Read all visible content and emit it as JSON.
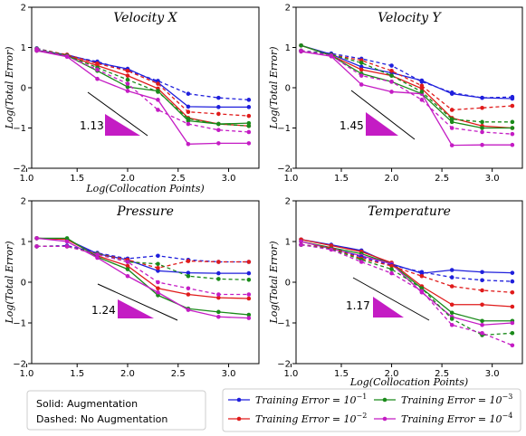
{
  "colors": {
    "blue": "#1f1fdc",
    "red": "#e01b1b",
    "green": "#1a8a1a",
    "magenta": "#c41cc4"
  },
  "note": {
    "line1": "Solid: Augmentation",
    "line2": "Dashed: No Augmentation"
  },
  "legend": [
    {
      "label": "Training Error = 10",
      "exp": "−1",
      "color_key": "blue"
    },
    {
      "label": "Training Error = 10",
      "exp": "−3",
      "color_key": "green"
    },
    {
      "label": "Training Error = 10",
      "exp": "−2",
      "color_key": "red"
    },
    {
      "label": "Training Error = 10",
      "exp": "−4",
      "color_key": "magenta"
    }
  ],
  "chart_data": [
    {
      "type": "line",
      "title": "Velocity X",
      "xlabel": "Log(Collocation Points)",
      "ylabel": "Log(Total Error)",
      "xlim": [
        1.05,
        3.3
      ],
      "ylim": [
        -2,
        2
      ],
      "xticks": [
        "1.0",
        "1.5",
        "2.0",
        "2.5",
        "3.0"
      ],
      "yticks": [
        "−2",
        "−1",
        "0",
        "1",
        "2"
      ],
      "slope_label": "1.13",
      "x": [
        1.1,
        1.4,
        1.7,
        2.0,
        2.3,
        2.6,
        2.9,
        3.2
      ],
      "series": [
        {
          "color_key": "blue",
          "style": "solid",
          "values": [
            0.93,
            0.82,
            0.62,
            0.47,
            0.13,
            -0.47,
            -0.48,
            -0.48
          ]
        },
        {
          "color_key": "red",
          "style": "solid",
          "values": [
            0.92,
            0.8,
            0.55,
            0.3,
            -0.02,
            -0.75,
            -0.9,
            -0.95
          ]
        },
        {
          "color_key": "green",
          "style": "solid",
          "values": [
            0.92,
            0.8,
            0.42,
            0.02,
            -0.08,
            -0.82,
            -0.9,
            -0.88
          ]
        },
        {
          "color_key": "magenta",
          "style": "solid",
          "values": [
            0.92,
            0.77,
            0.22,
            -0.08,
            -0.3,
            -1.4,
            -1.38,
            -1.38
          ]
        },
        {
          "color_key": "blue",
          "style": "dashed",
          "values": [
            0.98,
            0.8,
            0.65,
            0.43,
            0.17,
            -0.15,
            -0.25,
            -0.3
          ]
        },
        {
          "color_key": "red",
          "style": "dashed",
          "values": [
            0.97,
            0.82,
            0.6,
            0.42,
            0.1,
            -0.6,
            -0.65,
            -0.7
          ]
        },
        {
          "color_key": "green",
          "style": "dashed",
          "values": [
            0.97,
            0.8,
            0.5,
            0.2,
            -0.1,
            -0.77,
            -0.9,
            -0.95
          ]
        },
        {
          "color_key": "magenta",
          "style": "dashed",
          "values": [
            0.96,
            0.78,
            0.45,
            0.1,
            -0.55,
            -0.9,
            -1.05,
            -1.1
          ]
        }
      ]
    },
    {
      "type": "line",
      "title": "Velocity Y",
      "xlabel": "",
      "ylabel": "Log(Total Error)",
      "xlim": [
        1.05,
        3.3
      ],
      "ylim": [
        -2,
        2
      ],
      "xticks": [
        "1.0",
        "1.5",
        "2.0",
        "2.5",
        "3.0"
      ],
      "yticks": [
        "−2",
        "−1",
        "0",
        "1",
        "2"
      ],
      "slope_label": "1.45",
      "x": [
        1.1,
        1.4,
        1.7,
        2.0,
        2.3,
        2.6,
        2.9,
        3.2
      ],
      "series": [
        {
          "color_key": "blue",
          "style": "solid",
          "values": [
            1.05,
            0.83,
            0.52,
            0.37,
            0.18,
            -0.15,
            -0.25,
            -0.27
          ]
        },
        {
          "color_key": "red",
          "style": "solid",
          "values": [
            1.05,
            0.8,
            0.45,
            0.3,
            -0.02,
            -0.75,
            -0.95,
            -1.0
          ]
        },
        {
          "color_key": "green",
          "style": "solid",
          "values": [
            1.05,
            0.8,
            0.35,
            0.15,
            -0.15,
            -0.85,
            -1.0,
            -1.0
          ]
        },
        {
          "color_key": "magenta",
          "style": "solid",
          "values": [
            0.9,
            0.78,
            0.08,
            -0.1,
            -0.15,
            -1.43,
            -1.42,
            -1.42
          ]
        },
        {
          "color_key": "blue",
          "style": "dashed",
          "values": [
            0.92,
            0.85,
            0.72,
            0.55,
            0.15,
            -0.12,
            -0.25,
            -0.23
          ]
        },
        {
          "color_key": "red",
          "style": "dashed",
          "values": [
            0.92,
            0.82,
            0.68,
            0.42,
            0.05,
            -0.55,
            -0.5,
            -0.45
          ]
        },
        {
          "color_key": "green",
          "style": "dashed",
          "values": [
            0.92,
            0.82,
            0.62,
            0.3,
            -0.1,
            -0.78,
            -0.85,
            -0.85
          ]
        },
        {
          "color_key": "magenta",
          "style": "dashed",
          "values": [
            0.92,
            0.8,
            0.3,
            0.15,
            -0.3,
            -1.0,
            -1.1,
            -1.15
          ]
        }
      ]
    },
    {
      "type": "line",
      "title": "Pressure",
      "xlabel": "",
      "ylabel": "Log(Total Error)",
      "xlim": [
        1.05,
        3.3
      ],
      "ylim": [
        -2,
        2
      ],
      "xticks": [
        "1.0",
        "1.5",
        "2.0",
        "2.5",
        "3.0"
      ],
      "yticks": [
        "−2",
        "−1",
        "0",
        "1",
        "2"
      ],
      "slope_label": "1.24",
      "x": [
        1.1,
        1.4,
        1.7,
        2.0,
        2.3,
        2.6,
        2.9,
        3.2
      ],
      "series": [
        {
          "color_key": "blue",
          "style": "solid",
          "values": [
            1.08,
            1.05,
            0.7,
            0.55,
            0.28,
            0.23,
            0.22,
            0.22
          ]
        },
        {
          "color_key": "red",
          "style": "solid",
          "values": [
            1.08,
            1.05,
            0.65,
            0.4,
            -0.15,
            -0.3,
            -0.38,
            -0.4
          ]
        },
        {
          "color_key": "green",
          "style": "solid",
          "values": [
            1.08,
            1.08,
            0.62,
            0.32,
            -0.32,
            -0.65,
            -0.73,
            -0.8
          ]
        },
        {
          "color_key": "magenta",
          "style": "solid",
          "values": [
            1.08,
            1.0,
            0.6,
            0.15,
            -0.25,
            -0.68,
            -0.85,
            -0.88
          ]
        },
        {
          "color_key": "blue",
          "style": "dashed",
          "values": [
            0.88,
            0.9,
            0.72,
            0.58,
            0.65,
            0.55,
            0.5,
            0.5
          ]
        },
        {
          "color_key": "red",
          "style": "dashed",
          "values": [
            0.88,
            0.88,
            0.7,
            0.55,
            0.35,
            0.52,
            0.5,
            0.5
          ]
        },
        {
          "color_key": "green",
          "style": "dashed",
          "values": [
            0.88,
            0.88,
            0.7,
            0.5,
            0.45,
            0.15,
            0.08,
            0.06
          ]
        },
        {
          "color_key": "magenta",
          "style": "dashed",
          "values": [
            0.88,
            0.88,
            0.68,
            0.5,
            0.0,
            -0.15,
            -0.3,
            -0.3
          ]
        }
      ]
    },
    {
      "type": "line",
      "title": "Temperature",
      "xlabel": "Log(Collocation Points)",
      "ylabel": "Log(Total Error)",
      "xlim": [
        1.05,
        3.3
      ],
      "ylim": [
        -2,
        2
      ],
      "xticks": [
        "1.0",
        "1.5",
        "2.0",
        "2.5",
        "3.0"
      ],
      "yticks": [
        "−2",
        "−1",
        "0",
        "1",
        "2"
      ],
      "slope_label": "1.17",
      "x": [
        1.1,
        1.4,
        1.7,
        2.0,
        2.3,
        2.6,
        2.9,
        3.2
      ],
      "series": [
        {
          "color_key": "blue",
          "style": "solid",
          "values": [
            1.05,
            0.92,
            0.78,
            0.45,
            0.22,
            0.3,
            0.25,
            0.23
          ]
        },
        {
          "color_key": "red",
          "style": "solid",
          "values": [
            1.05,
            0.9,
            0.75,
            0.48,
            -0.1,
            -0.55,
            -0.55,
            -0.6
          ]
        },
        {
          "color_key": "green",
          "style": "solid",
          "values": [
            1.0,
            0.85,
            0.7,
            0.45,
            -0.15,
            -0.75,
            -0.95,
            -0.95
          ]
        },
        {
          "color_key": "magenta",
          "style": "solid",
          "values": [
            1.0,
            0.82,
            0.65,
            0.45,
            -0.25,
            -0.85,
            -1.05,
            -1.0
          ]
        },
        {
          "color_key": "blue",
          "style": "dashed",
          "values": [
            0.92,
            0.85,
            0.62,
            0.42,
            0.25,
            0.12,
            0.05,
            0.02
          ]
        },
        {
          "color_key": "red",
          "style": "dashed",
          "values": [
            0.92,
            0.85,
            0.58,
            0.4,
            0.15,
            -0.1,
            -0.2,
            -0.25
          ]
        },
        {
          "color_key": "green",
          "style": "dashed",
          "values": [
            0.92,
            0.82,
            0.55,
            0.32,
            -0.15,
            -0.9,
            -1.3,
            -1.25
          ]
        },
        {
          "color_key": "magenta",
          "style": "dashed",
          "values": [
            0.92,
            0.8,
            0.5,
            0.22,
            -0.22,
            -1.05,
            -1.25,
            -1.55
          ]
        }
      ]
    }
  ]
}
